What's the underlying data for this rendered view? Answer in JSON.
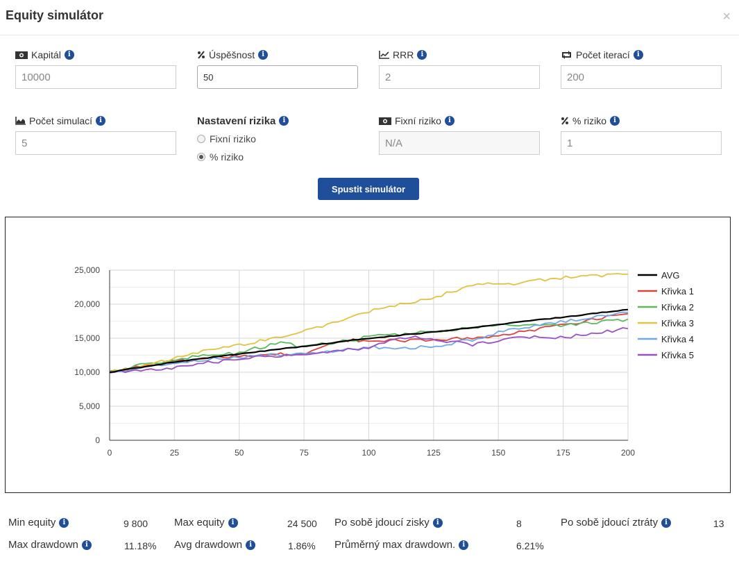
{
  "title": "Equity simulátor",
  "close_icon": "×",
  "inputs": {
    "kapital": {
      "label": "Kapitál",
      "value": "10000",
      "icon": "money-icon"
    },
    "uspesnost": {
      "label": "Úspěšnost",
      "value": "50",
      "icon": "percent-icon"
    },
    "rrr": {
      "label": "RRR",
      "value": "2",
      "icon": "line-chart-icon"
    },
    "pocet_iteraci": {
      "label": "Počet iterací",
      "value": "200",
      "icon": "retweet-icon"
    },
    "pocet_simulaci": {
      "label": "Počet simulací",
      "value": "5",
      "icon": "area-chart-icon"
    },
    "fixni_riziko": {
      "label": "Fixní riziko",
      "value": "N/A",
      "icon": "money-icon"
    },
    "procento_riziko": {
      "label": "% riziko",
      "value": "1",
      "icon": "percent-icon"
    }
  },
  "risk_settings": {
    "heading": "Nastavení rizika",
    "options": [
      {
        "label": "Fixní riziko",
        "checked": false
      },
      {
        "label": "% riziko",
        "checked": true
      }
    ]
  },
  "run_button": "Spustit simulátor",
  "chart_data": {
    "type": "line",
    "x_ticks": [
      "0",
      "25",
      "50",
      "75",
      "100",
      "125",
      "150",
      "175",
      "200"
    ],
    "y_ticks": [
      "0",
      "5,000",
      "10,000",
      "15,000",
      "20,000",
      "25,000"
    ],
    "xlim": [
      0,
      200
    ],
    "ylim": [
      0,
      25000
    ],
    "grid": true,
    "legend_position": "right",
    "series": [
      {
        "name": "AVG",
        "color": "#000000",
        "points": [
          [
            0,
            10000
          ],
          [
            25,
            11500
          ],
          [
            50,
            12700
          ],
          [
            75,
            13800
          ],
          [
            100,
            15000
          ],
          [
            125,
            15900
          ],
          [
            150,
            17000
          ],
          [
            175,
            18100
          ],
          [
            200,
            19200
          ]
        ]
      },
      {
        "name": "Křivka 1",
        "color": "#d9443f",
        "points": [
          [
            0,
            10000
          ],
          [
            25,
            11600
          ],
          [
            50,
            12400
          ],
          [
            75,
            12800
          ],
          [
            90,
            14700
          ],
          [
            100,
            14700
          ],
          [
            110,
            14600
          ],
          [
            125,
            14700
          ],
          [
            150,
            15300
          ],
          [
            175,
            17000
          ],
          [
            200,
            18600
          ]
        ]
      },
      {
        "name": "Křivka 2",
        "color": "#5cb85c",
        "points": [
          [
            0,
            10200
          ],
          [
            25,
            11900
          ],
          [
            50,
            12900
          ],
          [
            65,
            14300
          ],
          [
            75,
            13800
          ],
          [
            90,
            14500
          ],
          [
            100,
            15200
          ],
          [
            110,
            15600
          ],
          [
            125,
            15900
          ],
          [
            150,
            17000
          ],
          [
            175,
            16800
          ],
          [
            200,
            17800
          ]
        ]
      },
      {
        "name": "Křivka 3",
        "color": "#e0c341",
        "points": [
          [
            0,
            10000
          ],
          [
            25,
            12000
          ],
          [
            40,
            13500
          ],
          [
            50,
            14000
          ],
          [
            60,
            14800
          ],
          [
            75,
            16000
          ],
          [
            100,
            19000
          ],
          [
            110,
            19800
          ],
          [
            125,
            21000
          ],
          [
            145,
            23200
          ],
          [
            150,
            22800
          ],
          [
            175,
            23900
          ],
          [
            200,
            24400
          ]
        ]
      },
      {
        "name": "Křivka 4",
        "color": "#6fa8e8",
        "points": [
          [
            0,
            10000
          ],
          [
            25,
            11500
          ],
          [
            50,
            12200
          ],
          [
            75,
            12800
          ],
          [
            100,
            13700
          ],
          [
            110,
            13400
          ],
          [
            125,
            13800
          ],
          [
            140,
            14800
          ],
          [
            150,
            15900
          ],
          [
            175,
            17400
          ],
          [
            200,
            18800
          ]
        ]
      },
      {
        "name": "Křivka 5",
        "color": "#9b4fc4",
        "points": [
          [
            0,
            9900
          ],
          [
            25,
            10700
          ],
          [
            50,
            12000
          ],
          [
            75,
            12700
          ],
          [
            100,
            13600
          ],
          [
            115,
            15200
          ],
          [
            125,
            14800
          ],
          [
            140,
            14100
          ],
          [
            150,
            14700
          ],
          [
            165,
            15200
          ],
          [
            175,
            15100
          ],
          [
            200,
            16400
          ]
        ]
      }
    ]
  },
  "stats": {
    "min_equity": {
      "label": "Min equity",
      "value": "9 800"
    },
    "max_equity": {
      "label": "Max equity",
      "value": "24 500"
    },
    "po_sobe_zisky": {
      "label": "Po sobě jdoucí zisky",
      "value": "8"
    },
    "po_sobe_ztraty": {
      "label": "Po sobě jdoucí ztráty",
      "value": "13"
    },
    "max_drawdown": {
      "label": "Max drawdown",
      "value": "11.18%"
    },
    "avg_drawdown": {
      "label": "Avg drawdown",
      "value": "1.86%"
    },
    "prumerny_max_drawdown": {
      "label": "Průměrný max drawdown.",
      "value": "6.21%"
    }
  }
}
